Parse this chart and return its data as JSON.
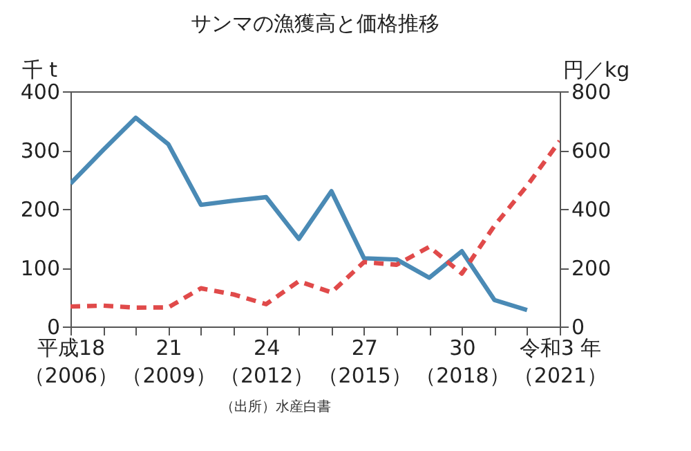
{
  "chart_data": {
    "type": "line",
    "title": "サンマの漁獲高と価格推移",
    "ylabel": "千 t",
    "y2label": "円／kg",
    "categories": [
      "平成18（2006）",
      null,
      null,
      "21（2009）",
      null,
      null,
      "24（2012）",
      null,
      null,
      "27（2015）",
      null,
      null,
      "30（2018）",
      null,
      null,
      "令和3 年（2021）"
    ],
    "series": [
      {
        "color": "#4a8ab5",
        "line_style": "solid",
        "values": [
          243,
          300,
          355,
          310,
          207,
          214,
          220,
          149,
          230,
          116,
          114,
          83,
          128,
          45,
          28,
          null
        ]
      },
      {
        "color": "#e04a4a",
        "line_style": "dashed",
        "axis": "y2",
        "values": [
          68,
          71,
          64,
          65,
          130,
          109,
          76,
          154,
          116,
          219,
          210,
          271,
          180,
          343,
          479,
          631
        ]
      }
    ],
    "ylim": [
      0,
      400
    ],
    "yticks": [
      0,
      100,
      200,
      300,
      400
    ],
    "y2lim": [
      0,
      800
    ],
    "y2ticks": [
      0,
      200,
      400,
      600,
      800
    ],
    "grid": false,
    "annotations": [
      "（出所）水産白書"
    ]
  }
}
